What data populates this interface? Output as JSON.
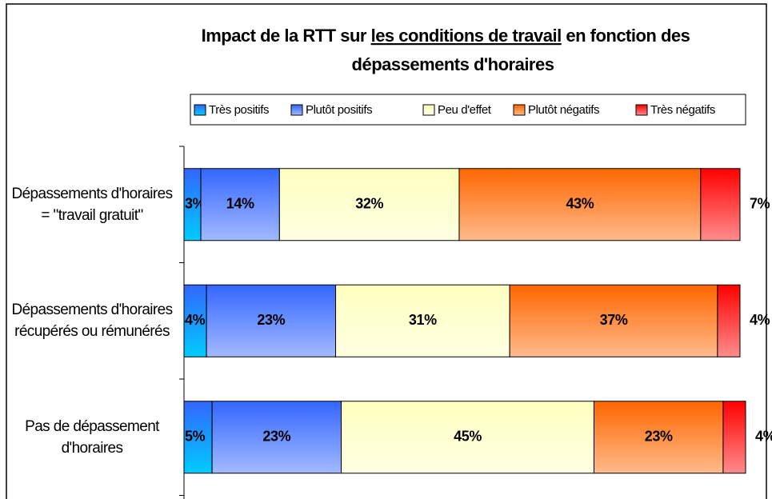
{
  "chart_data": {
    "type": "stacked_bar_horizontal",
    "title": [
      "Impact de la RTT sur ",
      "les conditions de travail",
      " en fonction des",
      "dépassements d'horaires"
    ],
    "categories": [
      "Dépassements d'horaires = \"travail gratuit\"",
      "Dépassements d'horaires récupérés ou rémunérés",
      "Pas de dépassement d'horaires"
    ],
    "series": [
      {
        "name": "Très positifs",
        "color": "#00ccff",
        "values": [
          3,
          4,
          5
        ],
        "value_labels": [
          "3%",
          "4%",
          "5%"
        ]
      },
      {
        "name": "Plutôt positifs",
        "color": "#3366ff",
        "values": [
          14,
          23,
          23
        ],
        "value_labels": [
          "14%",
          "23%",
          "23%"
        ]
      },
      {
        "name": "Peu d'effet",
        "color": "#ffffc0",
        "values": [
          32,
          31,
          45
        ],
        "value_labels": [
          "32%",
          "31%",
          "45%"
        ]
      },
      {
        "name": "Plutôt négatifs",
        "color": "#ff6600",
        "values": [
          43,
          37,
          23
        ],
        "value_labels": [
          "43%",
          "37%",
          "23%"
        ]
      },
      {
        "name": "Très négatifs",
        "color": "#ff0000",
        "values": [
          7,
          4,
          4
        ],
        "value_labels": [
          "7%",
          "4%",
          "4%"
        ]
      }
    ],
    "xlim": [
      0,
      100
    ],
    "legend": "top"
  }
}
